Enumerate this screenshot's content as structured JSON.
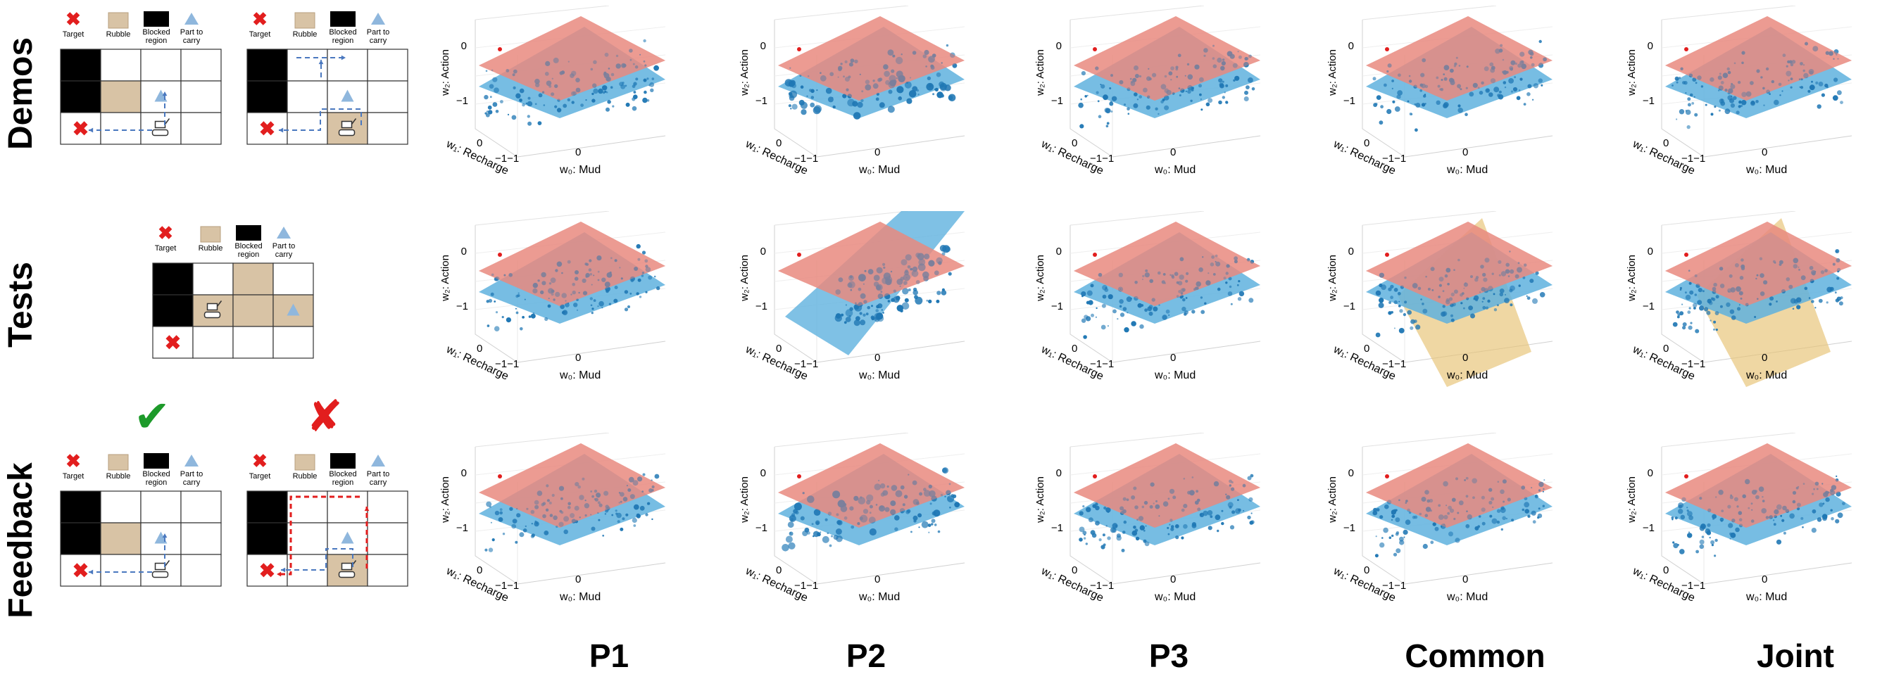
{
  "rows": [
    {
      "label": "Demos"
    },
    {
      "label": "Tests"
    },
    {
      "label": "Feedback"
    }
  ],
  "columns": [
    {
      "label": "P1"
    },
    {
      "label": "P2"
    },
    {
      "label": "P3"
    },
    {
      "label": "Common"
    },
    {
      "label": "Joint"
    }
  ],
  "legend": {
    "target": "Target",
    "rubble": "Rubble",
    "blocked_line1": "Blocked",
    "blocked_line2": "region",
    "part_line1": "Part to",
    "part_line2": "carry"
  },
  "feedback_marks": {
    "correct": "✔",
    "wrong": "✘"
  },
  "axes": {
    "w2": "w₂: Action",
    "w1": "w₁: Recharge",
    "w0": "w₀: Mud",
    "tick_zero": "0",
    "tick_neg1": "−1",
    "tick_neg1_pair": "−1−1"
  },
  "colors": {
    "blue_plane": "#5fb1de",
    "red_plane": "#e8897f",
    "yellow_plane": "#e7c271",
    "point": "#1f77b4",
    "target_red": "#e21e1e",
    "check_green": "#1d9a2a"
  }
}
